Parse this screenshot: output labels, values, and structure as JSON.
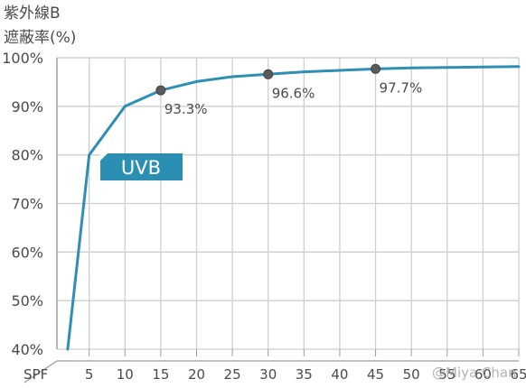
{
  "chart_data": {
    "type": "line",
    "title_line1": "紫外線B",
    "title_line2": "遮蔽率(%)",
    "x_axis_label": "SPF",
    "x_ticks": [
      5,
      10,
      15,
      20,
      25,
      30,
      35,
      40,
      45,
      50,
      55,
      60,
      65
    ],
    "y_ticks": [
      "40%",
      "50%",
      "60%",
      "70%",
      "80%",
      "90%",
      "100%"
    ],
    "y_tick_values": [
      40,
      50,
      60,
      70,
      80,
      90,
      100
    ],
    "xlim": [
      0.5,
      65
    ],
    "ylim": [
      40,
      100
    ],
    "grid": true,
    "series": [
      {
        "name": "UVB",
        "color": "#2e8fb5",
        "x": [
          2,
          5,
          10,
          15,
          20,
          25,
          30,
          35,
          40,
          45,
          50,
          55,
          60,
          65
        ],
        "y": [
          40,
          80,
          90,
          93.3,
          95.1,
          96.1,
          96.6,
          97.1,
          97.4,
          97.7,
          97.9,
          98.0,
          98.1,
          98.2
        ]
      }
    ],
    "markers": [
      {
        "x": 15,
        "y": 93.3,
        "label": "93.3%"
      },
      {
        "x": 30,
        "y": 96.6,
        "label": "96.6%"
      },
      {
        "x": 45,
        "y": 97.7,
        "label": "97.7%"
      }
    ],
    "series_label": {
      "text": "UVB",
      "color": "#2a8fb2"
    },
    "watermark": "@Miya Chan"
  }
}
